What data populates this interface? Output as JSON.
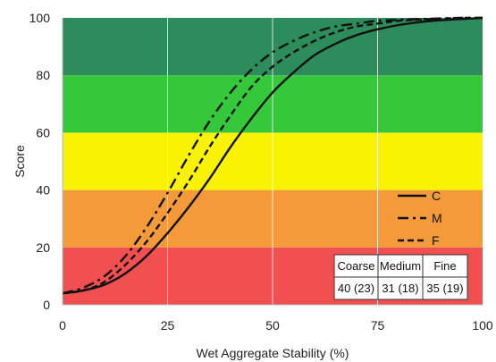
{
  "chart_data": {
    "type": "line",
    "title": "",
    "xlabel": "Wet Aggregate Stability (%)",
    "ylabel": "Score",
    "xlim": [
      0,
      100
    ],
    "ylim": [
      0,
      100
    ],
    "xticks": [
      0,
      25,
      50,
      75,
      100
    ],
    "yticks": [
      0,
      20,
      40,
      60,
      80,
      100
    ],
    "grid": "vertical only",
    "bands": [
      {
        "from": 0,
        "to": 20,
        "color": "#f25050"
      },
      {
        "from": 20,
        "to": 40,
        "color": "#f59a3a"
      },
      {
        "from": 40,
        "to": 60,
        "color": "#f9f200"
      },
      {
        "from": 60,
        "to": 80,
        "color": "#35c83a"
      },
      {
        "from": 80,
        "to": 100,
        "color": "#2d8c5c"
      }
    ],
    "series": [
      {
        "name": "C",
        "dash": "solid",
        "x": [
          0,
          5,
          10,
          15,
          20,
          25,
          30,
          35,
          40,
          45,
          50,
          55,
          60,
          65,
          70,
          75,
          80,
          85,
          90,
          95,
          100
        ],
        "y": [
          4,
          5,
          7,
          11,
          17,
          25,
          34,
          44,
          55,
          65,
          74,
          81,
          87,
          91,
          94,
          96,
          97.5,
          98.5,
          99.2,
          99.6,
          100
        ]
      },
      {
        "name": "M",
        "dash": "dashdot",
        "x": [
          0,
          5,
          10,
          15,
          20,
          25,
          30,
          35,
          40,
          45,
          50,
          55,
          60,
          65,
          70,
          75,
          80,
          85,
          90,
          95,
          100
        ],
        "y": [
          4,
          6,
          10,
          17,
          27,
          39,
          52,
          64,
          74,
          82,
          88,
          92,
          95,
          97,
          98,
          99,
          99.3,
          99.6,
          99.8,
          100,
          100
        ]
      },
      {
        "name": "F",
        "dash": "dashed",
        "x": [
          0,
          5,
          10,
          15,
          20,
          25,
          30,
          35,
          40,
          45,
          50,
          55,
          60,
          65,
          70,
          75,
          80,
          85,
          90,
          95,
          100
        ],
        "y": [
          4,
          5,
          8,
          14,
          22,
          32,
          43,
          55,
          66,
          76,
          83,
          88,
          92,
          95,
          97,
          98,
          99,
          99.4,
          99.7,
          100,
          100
        ]
      }
    ],
    "legend_position": "bottom-right",
    "table": {
      "headers": [
        "Coarse",
        "Medium",
        "Fine"
      ],
      "values": [
        "40 (23)",
        "31 (18)",
        "35 (19)"
      ]
    }
  }
}
